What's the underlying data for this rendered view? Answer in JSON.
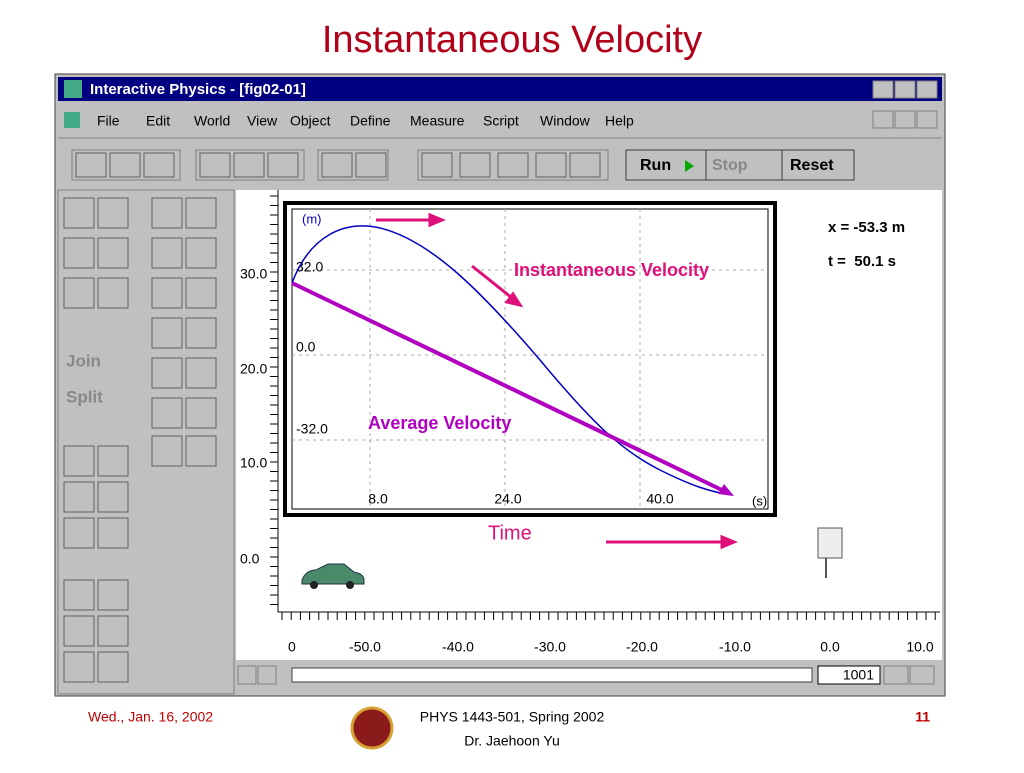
{
  "slide_title": "Instantaneous Velocity",
  "window": {
    "title": "Interactive Physics - [fig02-01]",
    "menu": [
      "File",
      "Edit",
      "World",
      "View",
      "Object",
      "Define",
      "Measure",
      "Script",
      "Window",
      "Help"
    ],
    "toolbar": {
      "run": "Run",
      "stop": "Stop",
      "reset": "Reset"
    },
    "palette": {
      "join": "Join",
      "split": "Split"
    }
  },
  "ruler_left": [
    "30.0",
    "20.0",
    "10.0",
    "0.0"
  ],
  "graph": {
    "y_unit": "(m)",
    "y_labels": [
      "32.0",
      "0.0",
      "-32.0"
    ],
    "x_labels": [
      "8.0",
      "24.0",
      "40.0"
    ],
    "x_unit": "(s)"
  },
  "annotations": {
    "instantaneous": "Instantaneous Velocity",
    "average": "Average Velocity",
    "time": "Time"
  },
  "readouts": {
    "x": "x = -53.3 m",
    "t": "t =  50.1 s"
  },
  "ruler_bottom": [
    "0",
    "-50.0",
    "-40.0",
    "-30.0",
    "-20.0",
    "-10.0",
    "0.0",
    "10.0"
  ],
  "frame": "1001",
  "footer": {
    "date": "Wed., Jan. 16, 2002",
    "course": "PHYS 1443-501, Spring 2002",
    "instructor": "Dr. Jaehoon Yu",
    "page": "11"
  }
}
